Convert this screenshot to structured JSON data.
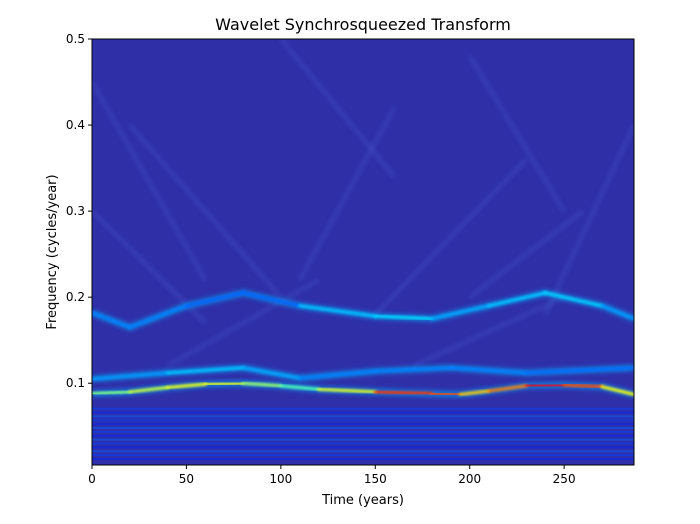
{
  "chart_data": {
    "type": "heatmap",
    "title": "Wavelet Synchrosqueezed Transform",
    "xlabel": "Time (years)",
    "ylabel": "Frequency (cycles/year)",
    "xlim": [
      0,
      287
    ],
    "ylim": [
      0.005,
      0.5
    ],
    "x_ticks": [
      0,
      50,
      100,
      150,
      200,
      250
    ],
    "y_ticks": [
      0.1,
      0.2,
      0.3,
      0.4,
      0.5
    ],
    "x_tick_labels": [
      "0",
      "50",
      "100",
      "150",
      "200",
      "250"
    ],
    "y_tick_labels": [
      "0.1",
      "0.2",
      "0.3",
      "0.4",
      "0.5"
    ],
    "colormap": "jet",
    "background_color": "#2f2fa8",
    "grid": false,
    "ridges": [
      {
        "name": "dominant",
        "points": [
          [
            0,
            0.088
          ],
          [
            20,
            0.09
          ],
          [
            40,
            0.095
          ],
          [
            60,
            0.099
          ],
          [
            80,
            0.1
          ],
          [
            100,
            0.097
          ],
          [
            120,
            0.093
          ],
          [
            150,
            0.09
          ],
          [
            180,
            0.088
          ],
          [
            195,
            0.087
          ],
          [
            210,
            0.091
          ],
          [
            230,
            0.097
          ],
          [
            250,
            0.098
          ],
          [
            270,
            0.096
          ],
          [
            287,
            0.087
          ]
        ],
        "intensity": [
          0.45,
          0.55,
          0.6,
          0.62,
          0.6,
          0.45,
          0.45,
          0.75,
          0.9,
          0.7,
          0.65,
          0.85,
          0.9,
          0.7,
          0.55
        ]
      },
      {
        "name": "upper_harmonic",
        "points": [
          [
            0,
            0.182
          ],
          [
            20,
            0.165
          ],
          [
            50,
            0.19
          ],
          [
            80,
            0.205
          ],
          [
            110,
            0.19
          ],
          [
            150,
            0.178
          ],
          [
            180,
            0.175
          ],
          [
            210,
            0.19
          ],
          [
            240,
            0.205
          ],
          [
            270,
            0.19
          ],
          [
            287,
            0.175
          ]
        ],
        "intensity": [
          0.25,
          0.25,
          0.25,
          0.2,
          0.25,
          0.38,
          0.3,
          0.28,
          0.36,
          0.3,
          0.25
        ]
      },
      {
        "name": "secondary_band",
        "points": [
          [
            0,
            0.105
          ],
          [
            40,
            0.112
          ],
          [
            80,
            0.118
          ],
          [
            110,
            0.106
          ],
          [
            150,
            0.114
          ],
          [
            190,
            0.118
          ],
          [
            230,
            0.112
          ],
          [
            287,
            0.118
          ]
        ],
        "intensity": [
          0.25,
          0.3,
          0.33,
          0.25,
          0.25,
          0.25,
          0.25,
          0.22
        ]
      }
    ]
  }
}
